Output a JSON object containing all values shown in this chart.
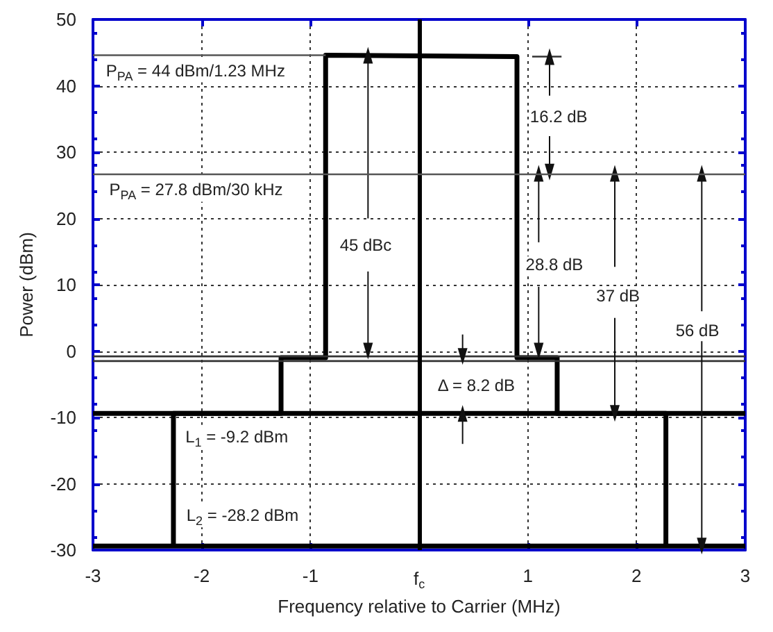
{
  "chart_data": {
    "type": "line",
    "xlabel": "Frequency relative to Carrier (MHz)",
    "ylabel": "Power (dBm)",
    "xlim": [
      -3,
      3
    ],
    "ylim": [
      -30,
      50
    ],
    "xticks": [
      -3,
      -2,
      -1,
      {
        "value": 0,
        "label": "f$_{c}$"
      },
      1,
      2,
      3
    ],
    "yticks": [
      -30,
      -20,
      -10,
      0,
      10,
      20,
      30,
      40,
      50
    ],
    "grid": true,
    "marker": "none",
    "series": [
      {
        "color": "#000000",
        "x": [
          -2.26,
          -2.26,
          -1.27,
          -1.27,
          -0.86,
          -0.86,
          0.9,
          0.9,
          1.27,
          1.27,
          2.27,
          2.27
        ],
        "values": [
          -29.4,
          -9.4,
          -9.4,
          -1,
          -1,
          44.6,
          44.4,
          -1,
          -1,
          -9.4,
          -9.4,
          -29.4
        ]
      },
      {
        "color": "#000000",
        "x": [
          -3,
          3
        ],
        "values": [
          -9.4,
          -9.4
        ]
      },
      {
        "color": "#000000",
        "x": [
          -3,
          3
        ],
        "values": [
          -29.4,
          -29.4
        ]
      },
      {
        "color": "#333333",
        "x": [
          -3,
          3
        ],
        "values": [
          -0.8,
          -0.8
        ]
      },
      {
        "color": "#333333",
        "x": [
          -3,
          3
        ],
        "values": [
          -1.5,
          -1.5
        ]
      },
      {
        "color": "#555555",
        "x": [
          -3,
          -0.86
        ],
        "values": [
          44.6,
          44.6
        ]
      },
      {
        "color": "#333333",
        "x": [
          1.04,
          1.31
        ],
        "values": [
          44.4,
          44.4
        ]
      },
      {
        "color": "#111111",
        "marker": "triangle",
        "x": [
          -0.47,
          -0.47
        ],
        "values": [
          20,
          44.6
        ]
      },
      {
        "color": "#111111",
        "marker": "triangle",
        "x": [
          -0.47,
          -0.47
        ],
        "values": [
          12,
          0
        ]
      },
      {
        "color": "#111111",
        "marker": "triangle",
        "x": [
          1.2,
          1.2
        ],
        "values": [
          38.5,
          44.4
        ]
      },
      {
        "color": "#111111",
        "marker": "triangle",
        "x": [
          1.2,
          1.2
        ],
        "values": [
          32.4,
          27
        ]
      },
      {
        "color": "#111111",
        "marker": "triangle",
        "x": [
          1.1,
          1.1
        ],
        "values": [
          16.4,
          26.8
        ]
      },
      {
        "color": "#111111",
        "marker": "triangle",
        "x": [
          1.1,
          1.1
        ],
        "values": [
          9.7,
          0
        ]
      },
      {
        "color": "#111111",
        "marker": "triangle",
        "x": [
          1.8,
          1.8
        ],
        "values": [
          12.7,
          26.8
        ]
      },
      {
        "color": "#111111",
        "marker": "triangle",
        "x": [
          1.8,
          1.8
        ],
        "values": [
          5,
          -9.4
        ]
      },
      {
        "color": "#111111",
        "marker": "triangle",
        "x": [
          2.6,
          2.6
        ],
        "values": [
          6,
          26.8
        ]
      },
      {
        "color": "#111111",
        "marker": "triangle",
        "x": [
          2.6,
          2.6
        ],
        "values": [
          1.5,
          -29.4
        ]
      },
      {
        "color": "#111111",
        "marker": "triangle",
        "x": [
          0.4,
          0.4
        ],
        "values": [
          2.5,
          -0.8
        ]
      },
      {
        "color": "#111111",
        "marker": "triangle",
        "x": [
          0.4,
          0.4
        ],
        "values": [
          -14,
          -9.4
        ]
      }
    ],
    "ref_lines": [
      {
        "axis": "x",
        "value": 0,
        "color": "#000000"
      },
      {
        "axis": "y",
        "value": 26.8,
        "color": "#555555"
      }
    ],
    "annotations": [
      "P$_{PA}$ = 44 dBm/1.23 MHz",
      "P$_{PA}$ = 27.8 dBm/30 kHz",
      "45 dBc",
      "16.2 dB",
      "28.8 dB",
      "37 dB",
      "56 dB",
      "Δ = 8.2 dB",
      "L$_{1}$ = -9.2 dBm",
      "L$_{2}$ = -28.2 dBm"
    ]
  }
}
